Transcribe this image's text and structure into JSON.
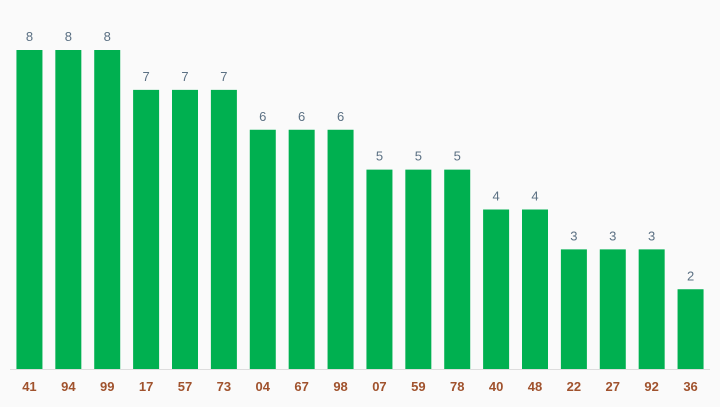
{
  "chart_data": {
    "type": "bar",
    "categories": [
      "41",
      "94",
      "99",
      "17",
      "57",
      "73",
      "04",
      "67",
      "98",
      "07",
      "59",
      "78",
      "40",
      "48",
      "22",
      "27",
      "92",
      "36"
    ],
    "values": [
      8,
      8,
      8,
      7,
      7,
      7,
      6,
      6,
      6,
      5,
      5,
      5,
      4,
      4,
      3,
      3,
      3,
      2
    ],
    "title": "",
    "xlabel": "",
    "ylabel": "",
    "ylim": [
      0,
      8
    ],
    "grid": false,
    "data_labels": true
  },
  "colors": {
    "bar": "#00b050",
    "value_label": "#5b7083",
    "category_label": "#a0522d",
    "baseline": "#dddddd",
    "background": "#fafafa"
  }
}
